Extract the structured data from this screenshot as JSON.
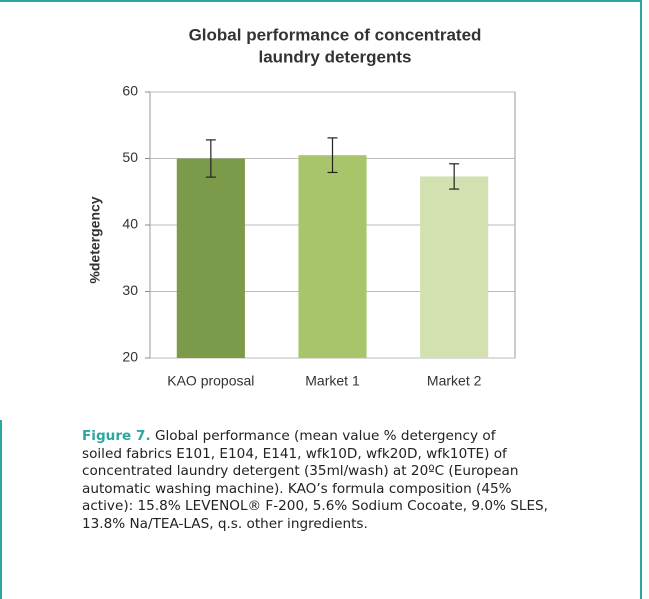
{
  "chart_data": {
    "type": "bar",
    "title": [
      "Global performance of concentrated",
      "laundry detergents"
    ],
    "y_label": "%detergency",
    "categories": [
      "KAO proposal",
      "Market 1",
      "Market 2"
    ],
    "values": [
      50,
      50.5,
      47.3
    ],
    "errors": [
      2.8,
      2.6,
      1.9
    ],
    "colors": [
      "#7b9b4b",
      "#a9c56b",
      "#d3e0b0"
    ],
    "ylim": [
      20,
      60
    ],
    "yticks": [
      20,
      30,
      40,
      50,
      60
    ],
    "grid": true
  },
  "caption": {
    "label": "Figure 7.",
    "lines": [
      "Global performance (mean value % detergency of",
      "soiled fabrics E101, E104, E141, wfk10D, wfk20D, wfk10TE) of",
      "concentrated laundry detergent (35ml/wash) at 20ºC (European",
      "automatic washing machine). KAO’s formula composition (45%",
      "active): 15.8% LEVENOL® F-200, 5.6% Sodium Cocoate, 9.0% SLES,",
      "13.8% Na/TEA-LAS, q.s. other ingredients."
    ]
  }
}
